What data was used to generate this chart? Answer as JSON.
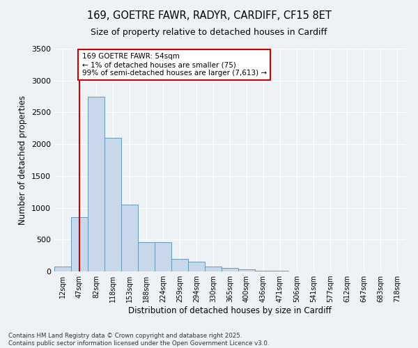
{
  "title_line1": "169, GOETRE FAWR, RADYR, CARDIFF, CF15 8ET",
  "title_line2": "Size of property relative to detached houses in Cardiff",
  "xlabel": "Distribution of detached houses by size in Cardiff",
  "ylabel": "Number of detached properties",
  "categories": [
    "12sqm",
    "47sqm",
    "82sqm",
    "118sqm",
    "153sqm",
    "188sqm",
    "224sqm",
    "259sqm",
    "294sqm",
    "330sqm",
    "365sqm",
    "400sqm",
    "436sqm",
    "471sqm",
    "506sqm",
    "541sqm",
    "577sqm",
    "612sqm",
    "647sqm",
    "683sqm",
    "718sqm"
  ],
  "values": [
    75,
    850,
    2750,
    2100,
    1050,
    460,
    460,
    200,
    150,
    80,
    55,
    30,
    15,
    8,
    5,
    3,
    2,
    1,
    1,
    0,
    0
  ],
  "bar_color": "#c8d8ea",
  "bar_edge_color": "#6699bb",
  "marker_bar_index": 1,
  "marker_color": "#cc0000",
  "annotation_title": "169 GOETRE FAWR: 54sqm",
  "annotation_line2": "← 1% of detached houses are smaller (75)",
  "annotation_line3": "99% of semi-detached houses are larger (7,613) →",
  "annotation_box_color": "#cc0000",
  "ylim": [
    0,
    3500
  ],
  "yticks": [
    0,
    500,
    1000,
    1500,
    2000,
    2500,
    3000,
    3500
  ],
  "background_color": "#eef2f7",
  "footnote_line1": "Contains HM Land Registry data © Crown copyright and database right 2025.",
  "footnote_line2": "Contains public sector information licensed under the Open Government Licence v3.0."
}
